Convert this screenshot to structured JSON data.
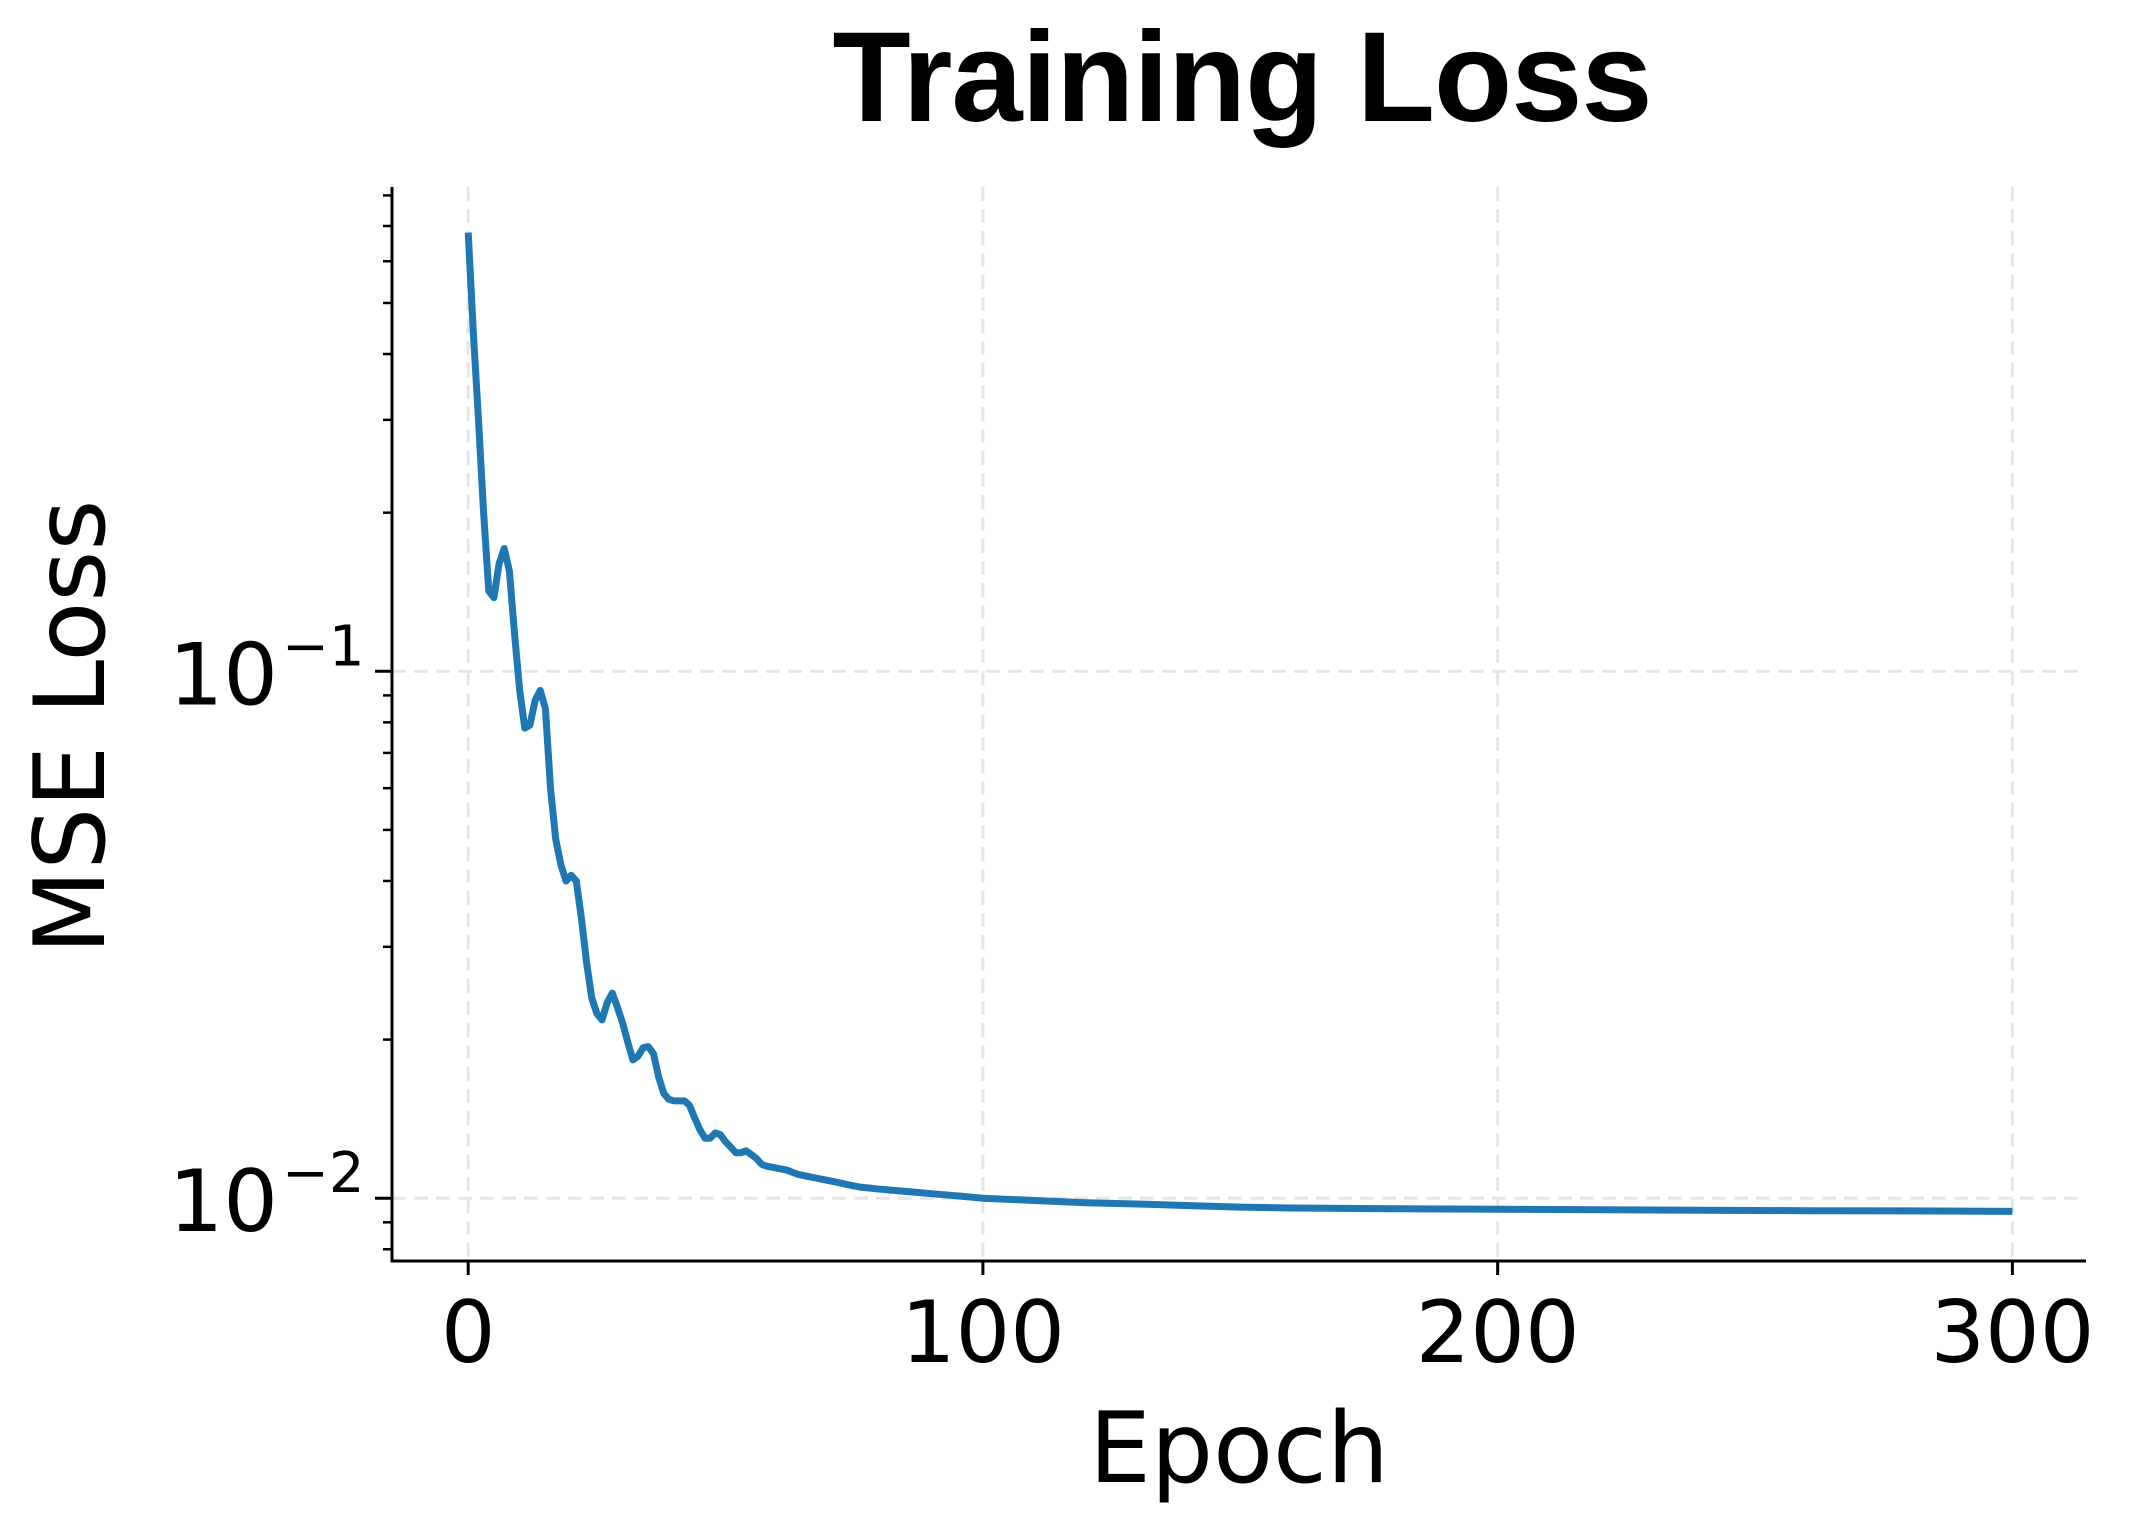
{
  "chart_data": {
    "type": "line",
    "title": "Training Loss",
    "xlabel": "Epoch",
    "ylabel": "MSE Loss",
    "yscale": "log",
    "xlim": [
      -14.8,
      314.3
    ],
    "ylim": [
      0.0076,
      0.83
    ],
    "xticks": [
      0,
      100,
      200,
      300
    ],
    "xtick_labels": [
      "0",
      "100",
      "200",
      "300"
    ],
    "yticks": [
      0.1,
      0.01
    ],
    "ytick_labels": [
      {
        "base": "10",
        "exp": "−1"
      },
      {
        "base": "10",
        "exp": "−2"
      }
    ],
    "y_minor_ticks": [
      0.008,
      0.009,
      0.02,
      0.03,
      0.04,
      0.05,
      0.06,
      0.07,
      0.08,
      0.09,
      0.2,
      0.3,
      0.4,
      0.5,
      0.6,
      0.7,
      0.8
    ],
    "grid": true,
    "grid_style": "dashed",
    "legend": null,
    "series": [
      {
        "name": "Training Loss",
        "color": "#1f77b4",
        "x": [
          0,
          1,
          2,
          3,
          4,
          5,
          6,
          7,
          8,
          9,
          10,
          11,
          12,
          13,
          14,
          15,
          16,
          17,
          18,
          19,
          20,
          21,
          22,
          23,
          24,
          25,
          26,
          27,
          28,
          29,
          30,
          31,
          32,
          33,
          34,
          35,
          36,
          37,
          38,
          39,
          40,
          42,
          43,
          44,
          45,
          46,
          47,
          48,
          49,
          50,
          51,
          52,
          53,
          54,
          55,
          56,
          57,
          58,
          60,
          62,
          64,
          66,
          68,
          70,
          72,
          74,
          76,
          80,
          85,
          90,
          95,
          100,
          110,
          120,
          130,
          140,
          150,
          160,
          180,
          200,
          220,
          240,
          260,
          280,
          300
        ],
        "values": [
          0.68,
          0.44,
          0.3,
          0.2,
          0.142,
          0.138,
          0.16,
          0.171,
          0.155,
          0.118,
          0.092,
          0.078,
          0.079,
          0.088,
          0.092,
          0.085,
          0.06,
          0.048,
          0.043,
          0.04,
          0.041,
          0.04,
          0.034,
          0.028,
          0.024,
          0.0224,
          0.0218,
          0.0235,
          0.0245,
          0.023,
          0.0215,
          0.0198,
          0.0183,
          0.0186,
          0.0193,
          0.0194,
          0.0188,
          0.017,
          0.0158,
          0.0154,
          0.0153,
          0.0153,
          0.015,
          0.0142,
          0.0135,
          0.013,
          0.013,
          0.0133,
          0.0132,
          0.0128,
          0.0125,
          0.0122,
          0.0122,
          0.0123,
          0.0121,
          0.0119,
          0.0116,
          0.0115,
          0.0114,
          0.0113,
          0.0111,
          0.011,
          0.0109,
          0.0108,
          0.0107,
          0.0106,
          0.0105,
          0.0104,
          0.0103,
          0.0102,
          0.0101,
          0.01,
          0.0099,
          0.0098,
          0.00975,
          0.00968,
          0.00962,
          0.00958,
          0.00955,
          0.00953,
          0.00951,
          0.00949,
          0.00947,
          0.00946,
          0.00944
        ]
      }
    ]
  },
  "figure": {
    "title": "Training Loss",
    "xlabel": "Epoch",
    "ylabel": "MSE Loss",
    "colors": {
      "line": "#1f77b4",
      "grid": "#e6e6e6",
      "axis": "#000000",
      "background": "#ffffff"
    }
  }
}
